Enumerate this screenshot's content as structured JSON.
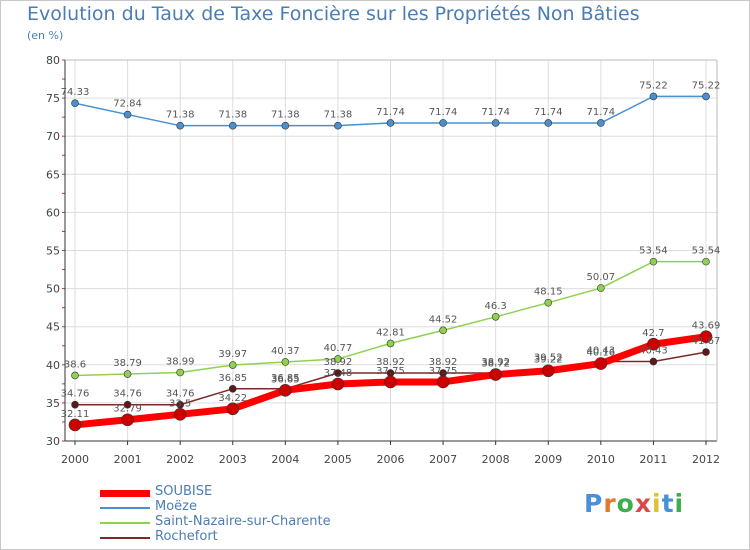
{
  "header": {
    "title": "Evolution du Taux de Taxe Foncière sur les Propriétés Non Bâties",
    "subtitle": "(en %)"
  },
  "logo": {
    "text": "Proxiti",
    "colors": [
      "#4a90d9",
      "#e07a2e",
      "#3cae4a",
      "#d94a4a",
      "#e0c22e",
      "#4a90d9",
      "#3cae4a"
    ]
  },
  "colors": {
    "title": "#4a7db4",
    "grid": "#dddddd",
    "axis": "#333333"
  },
  "chart_data": {
    "type": "line",
    "title": "Evolution du Taux de Taxe Foncière sur les Propriétés Non Bâties",
    "ylabel": "(en %)",
    "xlabel": "",
    "ylim": [
      30,
      80
    ],
    "yticks": [
      30,
      35,
      40,
      45,
      50,
      55,
      60,
      65,
      70,
      75,
      80
    ],
    "grid": true,
    "legend_position": "bottom-left",
    "categories": [
      "2000",
      "2001",
      "2002",
      "2003",
      "2004",
      "2005",
      "2006",
      "2007",
      "2008",
      "2009",
      "2010",
      "2011",
      "2012"
    ],
    "series": [
      {
        "name": "SOUBISE",
        "color": "#ff0000",
        "values": [
          32.11,
          32.79,
          33.5,
          34.22,
          36.65,
          37.48,
          37.75,
          37.75,
          38.72,
          39.22,
          40.16,
          42.7,
          43.69
        ],
        "labels": [
          "32.11",
          "32.79",
          "33.5",
          "34.22",
          "36.65",
          "37.48",
          "37.75",
          "37.75",
          "38.72",
          "39.22",
          "40.16",
          "42.7",
          "43.69"
        ]
      },
      {
        "name": "Moëze",
        "color": "#4a90d0",
        "values": [
          74.33,
          72.84,
          71.38,
          71.38,
          71.38,
          71.38,
          71.74,
          71.74,
          71.74,
          71.74,
          71.74,
          75.22,
          75.22
        ],
        "labels": [
          "74.33",
          "72.84",
          "71.38",
          "71.38",
          "71.38",
          "71.38",
          "71.74",
          "71.74",
          "71.74",
          "71.74",
          "71.74",
          "75.22",
          "75.22"
        ]
      },
      {
        "name": "Saint-Nazaire-sur-Charente",
        "color": "#8fd14f",
        "values": [
          38.6,
          38.79,
          38.99,
          39.97,
          40.37,
          40.77,
          42.81,
          44.52,
          46.3,
          48.15,
          50.07,
          53.54,
          53.54
        ],
        "labels": [
          "38.6",
          "38.79",
          "38.99",
          "39.97",
          "40.37",
          "40.77",
          "42.81",
          "44.52",
          "46.3",
          "48.15",
          "50.07",
          "53.54",
          "53.54"
        ]
      },
      {
        "name": "Rochefort",
        "color": "#7a2a2a",
        "values": [
          34.76,
          34.76,
          34.76,
          36.85,
          36.85,
          38.92,
          38.92,
          38.92,
          38.92,
          39.52,
          40.43,
          40.43,
          41.67
        ],
        "labels": [
          "34.76",
          "34.76",
          "34.76",
          "36.85",
          "36.85",
          "38.92",
          "38.92",
          "38.92",
          "38.92",
          "39.52",
          "40.43",
          "40.43",
          "41.67"
        ]
      }
    ]
  }
}
